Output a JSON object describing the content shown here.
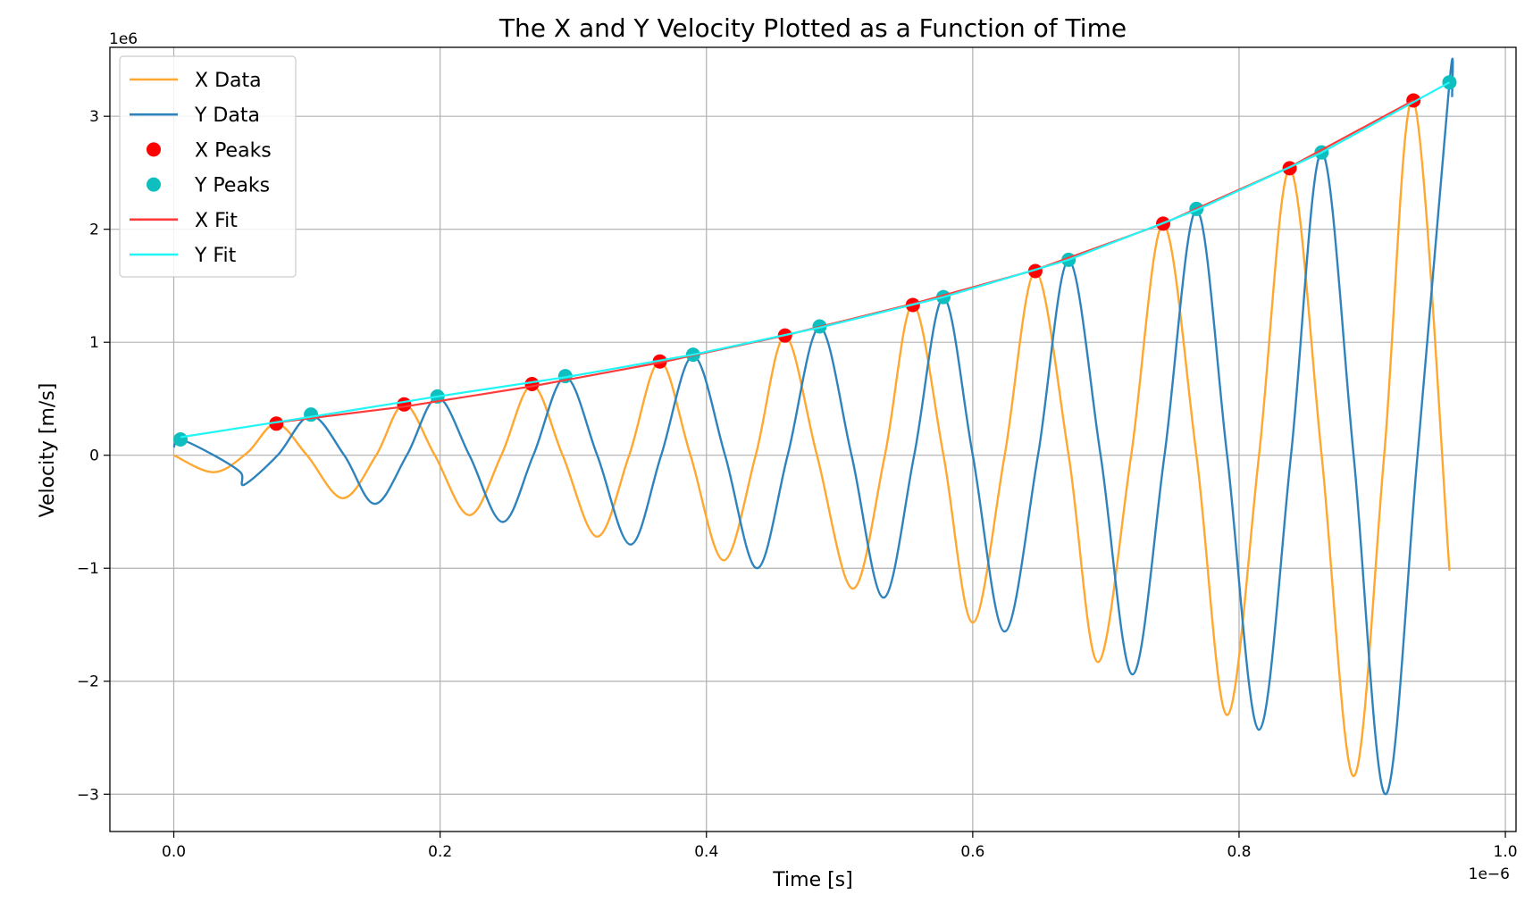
{
  "chart_data": {
    "type": "line",
    "title": "The X and Y Velocity Plotted as a Function of Time",
    "xlabel": "Time [s]",
    "ylabel": "Velocity [m/s]",
    "x_scale_label": "1e−6",
    "y_scale_label": "1e6",
    "xlim": [
      -0.048,
      1.008
    ],
    "ylim": [
      -3.33,
      3.61
    ],
    "grid": true,
    "legend_position": "top-left",
    "x_ticks": [
      0.0,
      0.2,
      0.4,
      0.6,
      0.8,
      1.0
    ],
    "x_tick_labels": [
      "0.0",
      "0.2",
      "0.4",
      "0.6",
      "0.8",
      "1.0"
    ],
    "y_ticks": [
      -3,
      -2,
      -1,
      0,
      1,
      2,
      3
    ],
    "y_tick_labels": [
      "−3",
      "−2",
      "−1",
      "0",
      "1",
      "2",
      "3"
    ],
    "colors": {
      "x_data": "#ffa72f",
      "y_data": "#2e83bd",
      "x_peaks": "#ff0000",
      "y_peaks": "#0fbfbf",
      "x_fit": "#ff3b3b",
      "y_fit": "#21f5f5"
    },
    "series": [
      {
        "name": "X Data",
        "kind": "line",
        "x_unit_note": "time in units of 1e-6 s, velocity in units of 1e6 m/s",
        "x": [
          0.0,
          0.03,
          0.055,
          0.077,
          0.1,
          0.127,
          0.152,
          0.173,
          0.196,
          0.222,
          0.246,
          0.269,
          0.292,
          0.318,
          0.342,
          0.365,
          0.388,
          0.413,
          0.437,
          0.459,
          0.483,
          0.51,
          0.534,
          0.555,
          0.578,
          0.6,
          0.624,
          0.647,
          0.672,
          0.694,
          0.719,
          0.743,
          0.768,
          0.791,
          0.815,
          0.838,
          0.862,
          0.886,
          0.909,
          0.931,
          0.958
        ],
        "y": [
          0.0,
          -0.15,
          0.02,
          0.28,
          0.0,
          -0.38,
          0.0,
          0.45,
          0.0,
          -0.53,
          0.0,
          0.62,
          0.0,
          -0.72,
          0.0,
          0.83,
          0.0,
          -0.93,
          0.0,
          1.05,
          0.0,
          -1.18,
          0.0,
          1.33,
          0.0,
          -1.48,
          0.0,
          1.62,
          0.0,
          -1.83,
          0.0,
          2.04,
          0.0,
          -2.3,
          0.0,
          2.53,
          0.0,
          -2.84,
          0.0,
          3.14,
          -1.02
        ]
      },
      {
        "name": "Y Data",
        "kind": "line",
        "x": [
          0.0,
          0.005,
          0.03,
          0.05,
          0.053,
          0.078,
          0.103,
          0.128,
          0.151,
          0.175,
          0.198,
          0.222,
          0.247,
          0.27,
          0.294,
          0.318,
          0.343,
          0.366,
          0.39,
          0.414,
          0.438,
          0.461,
          0.485,
          0.509,
          0.533,
          0.556,
          0.578,
          0.6,
          0.624,
          0.649,
          0.672,
          0.696,
          0.72,
          0.744,
          0.768,
          0.791,
          0.815,
          0.839,
          0.862,
          0.886,
          0.91,
          0.934,
          0.958,
          0.96
        ],
        "y": [
          0.07,
          0.14,
          0.0,
          -0.15,
          -0.26,
          0.0,
          0.35,
          0.0,
          -0.43,
          0.0,
          0.51,
          0.0,
          -0.59,
          0.0,
          0.69,
          0.0,
          -0.79,
          0.0,
          0.88,
          0.0,
          -1.0,
          0.0,
          1.13,
          0.0,
          -1.26,
          0.0,
          1.39,
          0.0,
          -1.56,
          0.0,
          1.72,
          0.0,
          -1.94,
          0.0,
          2.17,
          0.0,
          -2.43,
          0.0,
          2.68,
          0.0,
          -3.0,
          0.0,
          3.3,
          3.17
        ]
      },
      {
        "name": "X Peaks",
        "kind": "scatter",
        "x": [
          0.077,
          0.173,
          0.269,
          0.365,
          0.459,
          0.555,
          0.647,
          0.743,
          0.838,
          0.931
        ],
        "y": [
          0.28,
          0.45,
          0.63,
          0.83,
          1.06,
          1.33,
          1.63,
          2.05,
          2.54,
          3.14
        ]
      },
      {
        "name": "Y Peaks",
        "kind": "scatter",
        "x": [
          0.005,
          0.103,
          0.198,
          0.294,
          0.39,
          0.485,
          0.578,
          0.672,
          0.768,
          0.862,
          0.958
        ],
        "y": [
          0.14,
          0.36,
          0.52,
          0.7,
          0.89,
          1.14,
          1.4,
          1.73,
          2.18,
          2.68,
          3.3
        ]
      },
      {
        "name": "X Fit",
        "kind": "line",
        "x": [
          0.077,
          0.173,
          0.269,
          0.365,
          0.459,
          0.555,
          0.647,
          0.743,
          0.838,
          0.931
        ],
        "y": [
          0.29,
          0.43,
          0.61,
          0.82,
          1.06,
          1.34,
          1.64,
          2.05,
          2.55,
          3.14
        ]
      },
      {
        "name": "Y Fit",
        "kind": "line",
        "x": [
          0.005,
          0.103,
          0.198,
          0.294,
          0.39,
          0.485,
          0.578,
          0.672,
          0.768,
          0.862,
          0.958
        ],
        "y": [
          0.16,
          0.34,
          0.52,
          0.69,
          0.89,
          1.13,
          1.4,
          1.73,
          2.17,
          2.68,
          3.3
        ]
      }
    ]
  }
}
